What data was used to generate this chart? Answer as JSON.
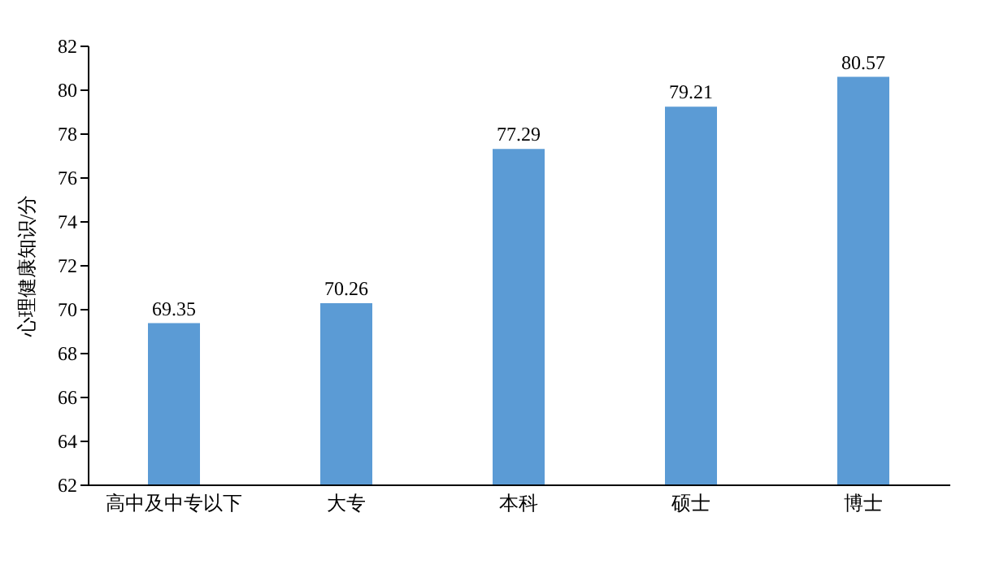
{
  "chart_data": {
    "type": "bar",
    "categories": [
      "高中及中专以下",
      "大专",
      "本科",
      "硕士",
      "博士"
    ],
    "values": [
      69.35,
      70.26,
      77.29,
      79.21,
      80.57
    ],
    "color": "#5b9bd5",
    "ylabel": "心理健康知识/分",
    "ylim": [
      62,
      82
    ],
    "yticks": [
      62,
      64,
      66,
      68,
      70,
      72,
      74,
      76,
      78,
      80,
      82
    ],
    "data_labels": true,
    "grid": false
  }
}
